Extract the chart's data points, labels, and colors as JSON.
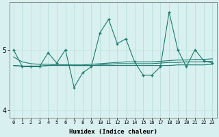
{
  "xlabel": "Humidex (Indice chaleur)",
  "x_values": [
    0,
    1,
    2,
    3,
    4,
    5,
    6,
    7,
    8,
    9,
    10,
    11,
    12,
    13,
    14,
    15,
    16,
    17,
    18,
    19,
    20,
    21,
    22,
    23
  ],
  "y_main": [
    5.0,
    4.72,
    4.72,
    4.72,
    4.95,
    4.78,
    5.0,
    4.38,
    4.62,
    4.72,
    5.28,
    5.5,
    5.1,
    5.18,
    4.8,
    4.58,
    4.58,
    4.72,
    5.62,
    5.0,
    4.72,
    5.0,
    4.82,
    4.78
  ],
  "y_avg1": [
    4.74,
    4.73,
    4.73,
    4.73,
    4.74,
    4.75,
    4.75,
    4.75,
    4.75,
    4.76,
    4.77,
    4.78,
    4.79,
    4.8,
    4.8,
    4.8,
    4.8,
    4.81,
    4.82,
    4.83,
    4.83,
    4.84,
    4.84,
    4.85
  ],
  "y_avg2": [
    4.88,
    4.8,
    4.77,
    4.76,
    4.76,
    4.75,
    4.75,
    4.74,
    4.74,
    4.74,
    4.74,
    4.74,
    4.74,
    4.74,
    4.74,
    4.74,
    4.74,
    4.74,
    4.74,
    4.75,
    4.75,
    4.75,
    4.75,
    4.76
  ],
  "y_avg3": [
    4.74,
    4.73,
    4.73,
    4.73,
    4.74,
    4.74,
    4.74,
    4.74,
    4.74,
    4.74,
    4.75,
    4.76,
    4.77,
    4.77,
    4.77,
    4.77,
    4.77,
    4.78,
    4.79,
    4.79,
    4.8,
    4.8,
    4.8,
    4.81
  ],
  "line_color": "#1a7a6e",
  "bg_color": "#d8f0ef",
  "vgrid_color": "#b8dedd",
  "hgrid_color": "#c5e8e7",
  "ylim": [
    3.88,
    5.78
  ],
  "yticks": [
    4,
    5
  ],
  "xlim": [
    -0.5,
    23.5
  ],
  "figsize": [
    3.2,
    2.0
  ],
  "dpi": 100
}
